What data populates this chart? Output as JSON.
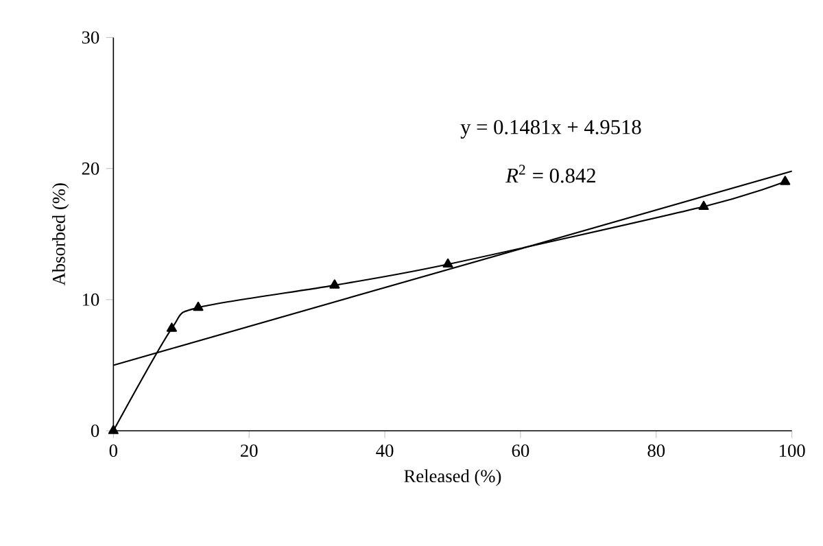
{
  "chart_data": {
    "type": "line",
    "xlabel": "Released (%)",
    "ylabel": "Absorbed (%)",
    "xlim": [
      0,
      100
    ],
    "ylim": [
      0,
      30
    ],
    "xticks": [
      0,
      20,
      40,
      60,
      80,
      100
    ],
    "yticks": [
      0,
      10,
      20,
      30
    ],
    "grid": false,
    "line_style": "solid",
    "series": [
      {
        "color": "#000000",
        "marker": "triangle",
        "x": [
          0,
          8.6,
          12.5,
          32.6,
          49.3,
          87,
          99
        ],
        "values": [
          0,
          7.8,
          9.4,
          11.1,
          12.7,
          17.1,
          19
        ]
      },
      {
        "color": "#000000",
        "marker": "none",
        "x": [
          0,
          100
        ],
        "values": [
          5,
          19.8
        ]
      }
    ],
    "annotations": [
      "y = 0.1481x + 4.9518",
      "*R*$^{2}$ = 0.842"
    ]
  }
}
